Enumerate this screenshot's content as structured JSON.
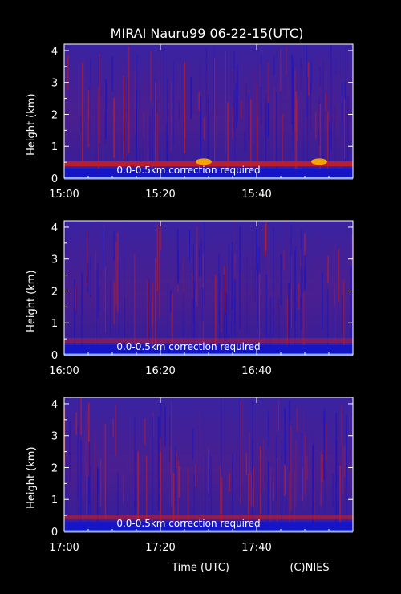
{
  "figure": {
    "title": "MIRAI Nauru99 06-22-15(UTC)",
    "xlabel": "Time (UTC)",
    "credit": "(C)NIES",
    "colors": {
      "background": "#000000",
      "low": "#1414c8",
      "mid": "#5a1e8c",
      "high": "#c81e1e",
      "peak": "#ffb000"
    }
  },
  "chart_data": [
    {
      "type": "heatmap",
      "ylabel": "Height (km)",
      "ylim": [
        0,
        4.2
      ],
      "yticks": [
        0,
        1,
        2,
        3,
        4
      ],
      "xlim": [
        "15:00",
        "16:00"
      ],
      "xticks": [
        "15:00",
        "15:20",
        "15:40"
      ],
      "annotation": "0.0-0.5km correction required",
      "features": {
        "boundary_layer_top_km": 0.45,
        "red_layer_intensity": 0.9,
        "enhanced_patches": [
          "15:29",
          "15:53"
        ]
      }
    },
    {
      "type": "heatmap",
      "ylabel": "Height (km)",
      "ylim": [
        0,
        4.2
      ],
      "yticks": [
        0,
        1,
        2,
        3,
        4
      ],
      "xlim": [
        "16:00",
        "17:00"
      ],
      "xticks": [
        "16:00",
        "16:20",
        "16:40"
      ],
      "annotation": "0.0-0.5km correction required",
      "features": {
        "boundary_layer_top_km": 0.45,
        "red_layer_intensity": 0.45,
        "enhanced_patches": []
      }
    },
    {
      "type": "heatmap",
      "ylabel": "Height (km)",
      "ylim": [
        0,
        4.2
      ],
      "yticks": [
        0,
        1,
        2,
        3,
        4
      ],
      "xlim": [
        "17:00",
        "18:00"
      ],
      "xticks": [
        "17:00",
        "17:20",
        "17:40"
      ],
      "annotation": "0.0-0.5km correction required",
      "features": {
        "boundary_layer_top_km": 0.45,
        "red_layer_intensity": 0.6,
        "enhanced_patches": []
      }
    }
  ]
}
